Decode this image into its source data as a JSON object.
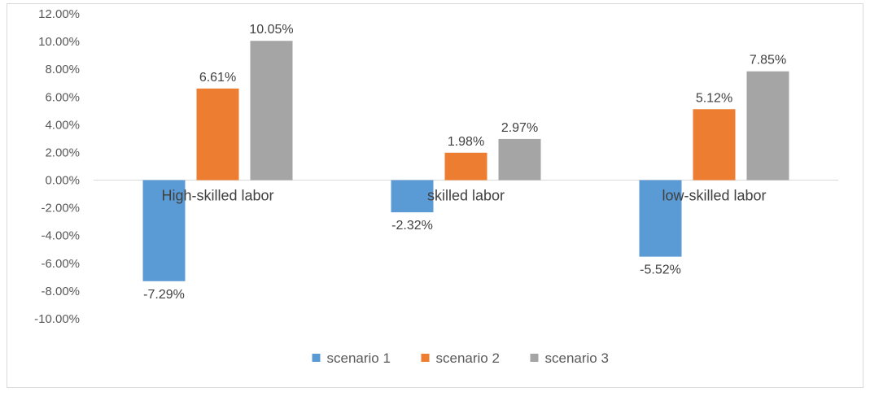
{
  "chart_data": {
    "type": "bar",
    "categories": [
      "High-skilled labor",
      "skilled labor",
      "low-skilled labor"
    ],
    "series": [
      {
        "name": "scenario 1",
        "values": [
          -7.29,
          -2.32,
          -5.52
        ],
        "labels": [
          "-7.29%",
          "-2.32%",
          "-5.52%"
        ],
        "color": "#5b9bd5"
      },
      {
        "name": "scenario 2",
        "values": [
          6.61,
          1.98,
          5.12
        ],
        "labels": [
          "6.61%",
          "1.98%",
          "5.12%"
        ],
        "color": "#ed7d31"
      },
      {
        "name": "scenario 3",
        "values": [
          10.05,
          2.97,
          7.85
        ],
        "labels": [
          "10.05%",
          "2.97%",
          "7.85%"
        ],
        "color": "#a5a5a5"
      }
    ],
    "ylim": [
      -10,
      12
    ],
    "yticks": [
      12,
      10,
      8,
      6,
      4,
      2,
      0,
      -2,
      -4,
      -6,
      -8,
      -10
    ],
    "ytick_labels": [
      "12.00%",
      "10.00%",
      "8.00%",
      "6.00%",
      "4.00%",
      "2.00%",
      "0.00%",
      "-2.00%",
      "-4.00%",
      "-6.00%",
      "-8.00%",
      "-10.00%"
    ],
    "grid": false,
    "legend": "bottom"
  }
}
